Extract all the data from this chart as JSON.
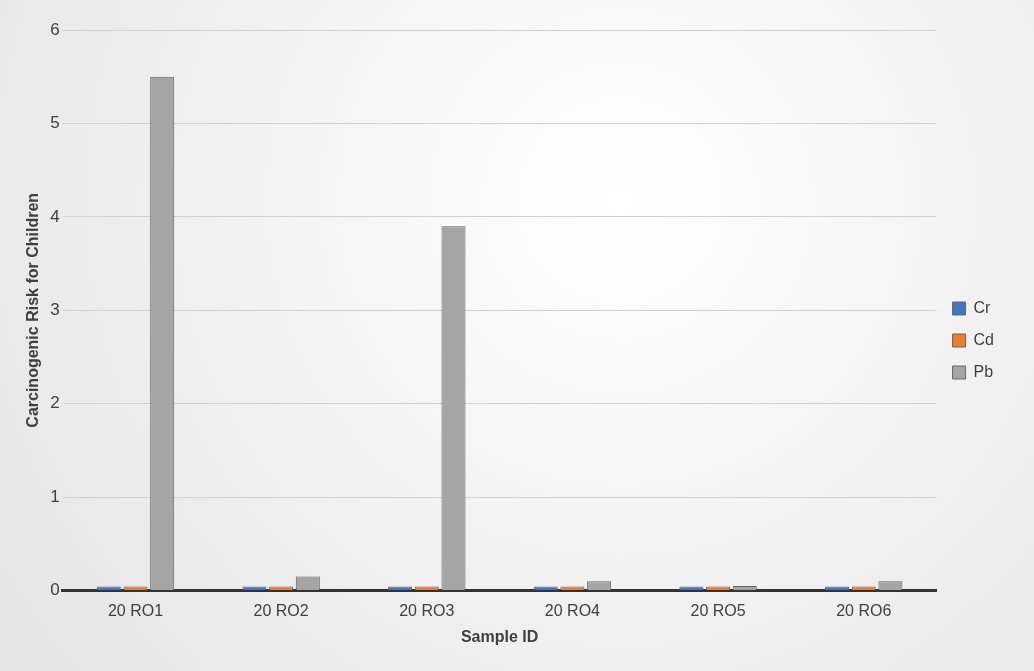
{
  "chart_data": {
    "type": "bar",
    "xlabel": "Sample ID",
    "ylabel": "Carcinogenic Risk for Children",
    "categories": [
      "20 RO1",
      "20 RO2",
      "20 RO3",
      "20 RO4",
      "20 RO5",
      "20 RO6"
    ],
    "series": [
      {
        "name": "Cr",
        "color": "#4472c4",
        "values": [
          0,
          0,
          0,
          0,
          0,
          0
        ]
      },
      {
        "name": "Cd",
        "color": "#ed7d31",
        "values": [
          0,
          0,
          0,
          0,
          0,
          0
        ]
      },
      {
        "name": "Pb",
        "color": "#a5a5a5",
        "values": [
          5.5,
          0.15,
          3.9,
          0.1,
          0.05,
          0.1
        ]
      }
    ],
    "ylim": [
      0,
      6
    ],
    "yticks": [
      0,
      1,
      2,
      3,
      4,
      5,
      6
    ],
    "grid": "y",
    "legend": "right"
  }
}
